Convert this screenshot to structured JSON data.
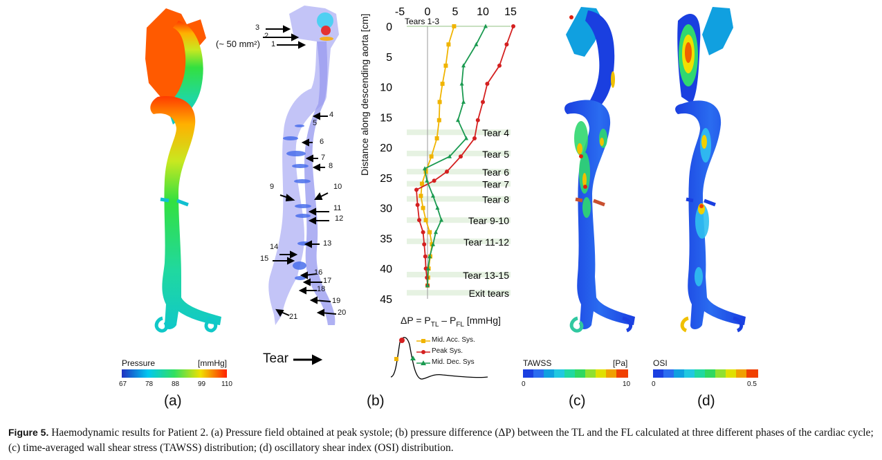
{
  "panels": {
    "a": {
      "label": "(a)",
      "colorbar": {
        "title": "Pressure",
        "unit": "[mmHg]",
        "ticks": [
          "67",
          "78",
          "88",
          "99",
          "110"
        ]
      }
    },
    "b": {
      "label": "(b)",
      "tear_area": "(~ 50 mm²)",
      "tear_arrow_label": "Tear",
      "numbers": [
        "1",
        "2",
        "3",
        "4",
        "5",
        "6",
        "7",
        "8",
        "9",
        "10",
        "11",
        "12",
        "13",
        "14",
        "15",
        "16",
        "17",
        "18",
        "19",
        "20",
        "21"
      ]
    },
    "c": {
      "label": "(c)",
      "colorbar": {
        "title": "TAWSS",
        "unit": "[Pa]",
        "ticks": [
          "0",
          "10"
        ]
      }
    },
    "d": {
      "label": "(d)",
      "colorbar": {
        "title": "OSI",
        "ticks": [
          "0",
          "0.5"
        ]
      }
    }
  },
  "chart_data": {
    "type": "line",
    "xlabel": "ΔP = P",
    "xlabel_sub1": "TL",
    "xlabel_mid": " – P",
    "xlabel_sub2": "FL",
    "xlabel_unit": " [mmHg]",
    "ylabel": "Distance along descending aorta  [cm]",
    "xlim": [
      -5,
      15
    ],
    "ylim": [
      0,
      45
    ],
    "xticks": [
      "-5",
      "0",
      "5",
      "10",
      "15"
    ],
    "yticks": [
      "0",
      "5",
      "10",
      "15",
      "20",
      "25",
      "30",
      "35",
      "40",
      "45"
    ],
    "tears": [
      {
        "label": "Tears 1-3",
        "y": 0
      },
      {
        "label": "Tear 4",
        "y": 17.5
      },
      {
        "label": "Tear 5",
        "y": 21
      },
      {
        "label": "Tear 6",
        "y": 24
      },
      {
        "label": "Tear 7",
        "y": 26
      },
      {
        "label": "Tear 8",
        "y": 28.5
      },
      {
        "label": "Tear 9-10",
        "y": 32
      },
      {
        "label": "Tear 11-12",
        "y": 35.5
      },
      {
        "label": "Tear 13-15",
        "y": 41
      },
      {
        "label": "Exit tears",
        "y": 44
      }
    ],
    "series": [
      {
        "name": "Mid. Acc. Sys.",
        "color": "#f0b400",
        "marker": "square",
        "x": [
          4.8,
          3.8,
          3.3,
          2.7,
          2.2,
          2.1,
          1.7,
          0.7,
          -0.3,
          -1.0,
          -1.2,
          -0.8,
          -0.3,
          0.4,
          0.8,
          0.5,
          0.2,
          0.1,
          0
        ],
        "y": [
          0,
          3,
          6.5,
          9.5,
          12.5,
          15.5,
          18.5,
          21.5,
          24,
          26,
          28,
          30,
          32,
          34,
          36,
          38,
          40,
          41.5,
          42.8
        ]
      },
      {
        "name": "Peak Sys.",
        "color": "#d42020",
        "marker": "circle",
        "x": [
          15.5,
          14.3,
          13,
          10.8,
          10,
          9.1,
          8.5,
          6,
          3.5,
          1.2,
          -2,
          -1.8,
          -1.5,
          -0.8,
          -0.6,
          -0.4,
          -0.3,
          -0.1,
          0
        ],
        "y": [
          0,
          3,
          6.5,
          9.5,
          12.5,
          15.5,
          18.5,
          21.5,
          24,
          25.5,
          27,
          29.5,
          32,
          34,
          36,
          38,
          40,
          41.5,
          42.8
        ]
      },
      {
        "name": "Mid. Dec. Sys",
        "color": "#1a9a50",
        "marker": "triangle",
        "x": [
          10.5,
          8.8,
          6.5,
          6.2,
          6.5,
          5.5,
          7,
          4,
          -0.5,
          -0.1,
          1,
          1.8,
          2.5,
          1.5,
          1.0,
          0.4,
          0.1,
          0
        ],
        "y": [
          0,
          3,
          6.5,
          9.5,
          12.5,
          15.5,
          18.5,
          21.5,
          23.5,
          25.5,
          28,
          30,
          32,
          34,
          36,
          38,
          40,
          42.8
        ]
      }
    ]
  },
  "caption": {
    "bold": "Figure 5.",
    "text": "  Haemodynamic results for Patient 2. (a) Pressure field obtained at peak systole; (b) pressure difference (ΔP) between the TL and the FL calculated at three different phases of the cardiac cycle; (c) time-averaged wall shear stress (TAWSS) distribution; (d) oscillatory shear index (OSI) distribution."
  }
}
